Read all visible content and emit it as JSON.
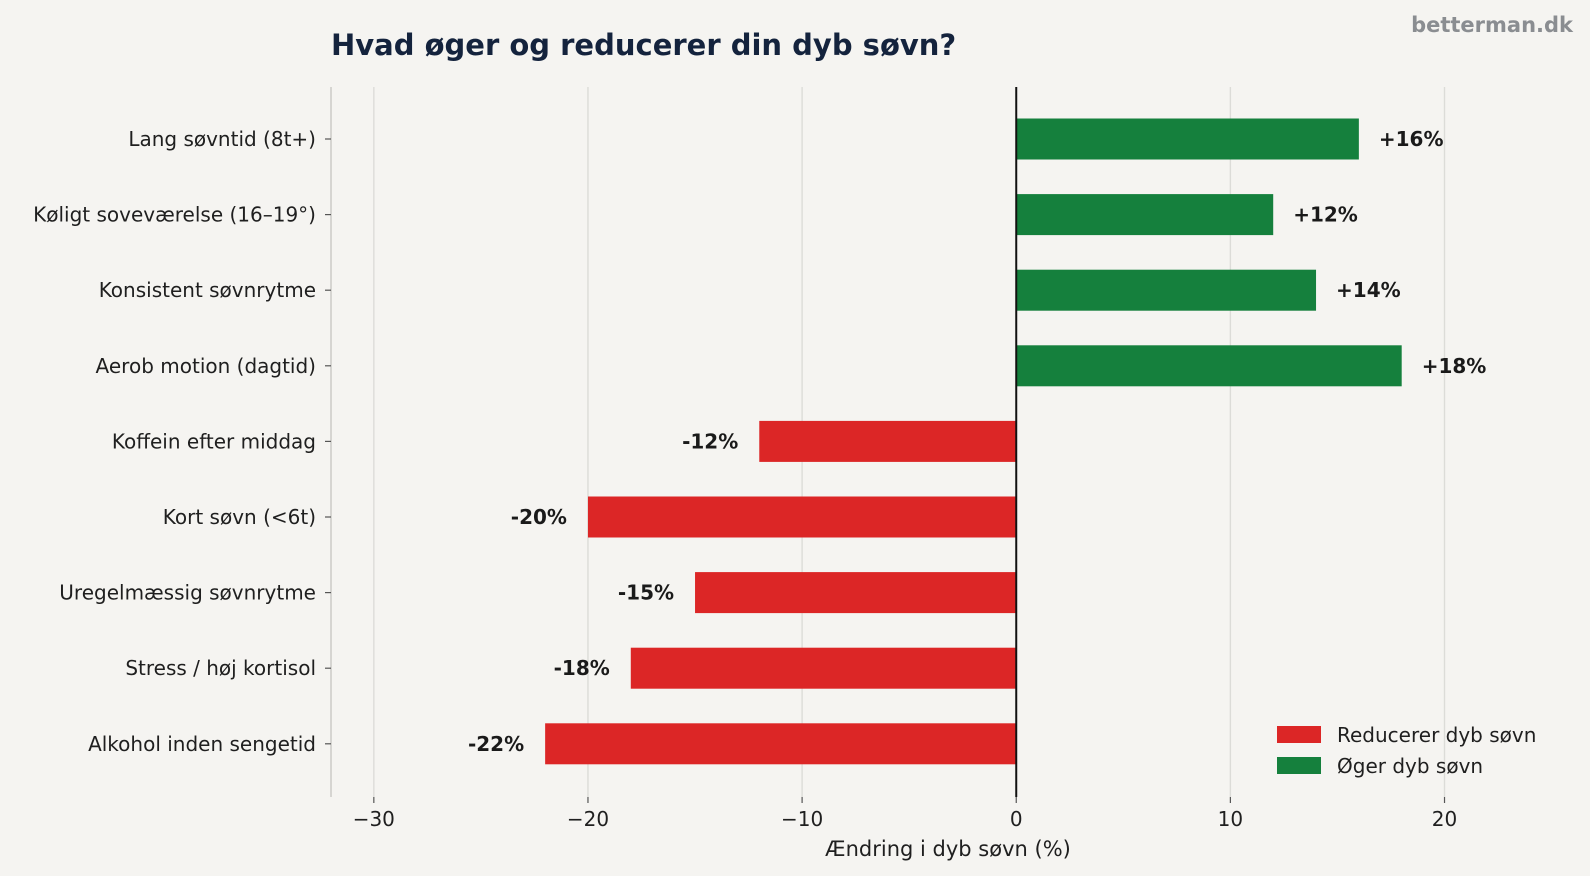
{
  "watermark": "betterman.dk",
  "chart_data": {
    "type": "bar",
    "orientation": "horizontal",
    "title": "Hvad øger og reducerer din dyb søvn?",
    "xlabel": "Ændring i dyb søvn (%)",
    "ylabel": "",
    "xlim": [
      -32,
      26
    ],
    "xticks": [
      -30,
      -20,
      -10,
      0,
      10,
      20
    ],
    "xtick_labels": [
      "−30",
      "−20",
      "−10",
      "0",
      "10",
      "20"
    ],
    "grid": "vertical",
    "categories": [
      "Lang søvntid (8t+)",
      "Køligt soveværelse (16–19°)",
      "Konsistent søvnrytme",
      "Aerob motion (dagtid)",
      "Koffein efter middag",
      "Kort søvn (<6t)",
      "Uregelmæssig søvnrytme",
      "Stress / høj kortisol",
      "Alkohol inden sengetid"
    ],
    "values": [
      16,
      12,
      14,
      18,
      -12,
      -20,
      -15,
      -18,
      -22
    ],
    "value_labels": [
      "+16%",
      "+12%",
      "+14%",
      "+18%",
      "-12%",
      "-20%",
      "-15%",
      "-18%",
      "-22%"
    ],
    "colors": {
      "positive": "#15803d",
      "negative": "#dc2626"
    },
    "legend": {
      "placement": "bottom-right",
      "entries": [
        {
          "label": "Reducerer dyb søvn",
          "color": "#dc2626"
        },
        {
          "label": "Øger dyb søvn",
          "color": "#15803d"
        }
      ]
    }
  }
}
